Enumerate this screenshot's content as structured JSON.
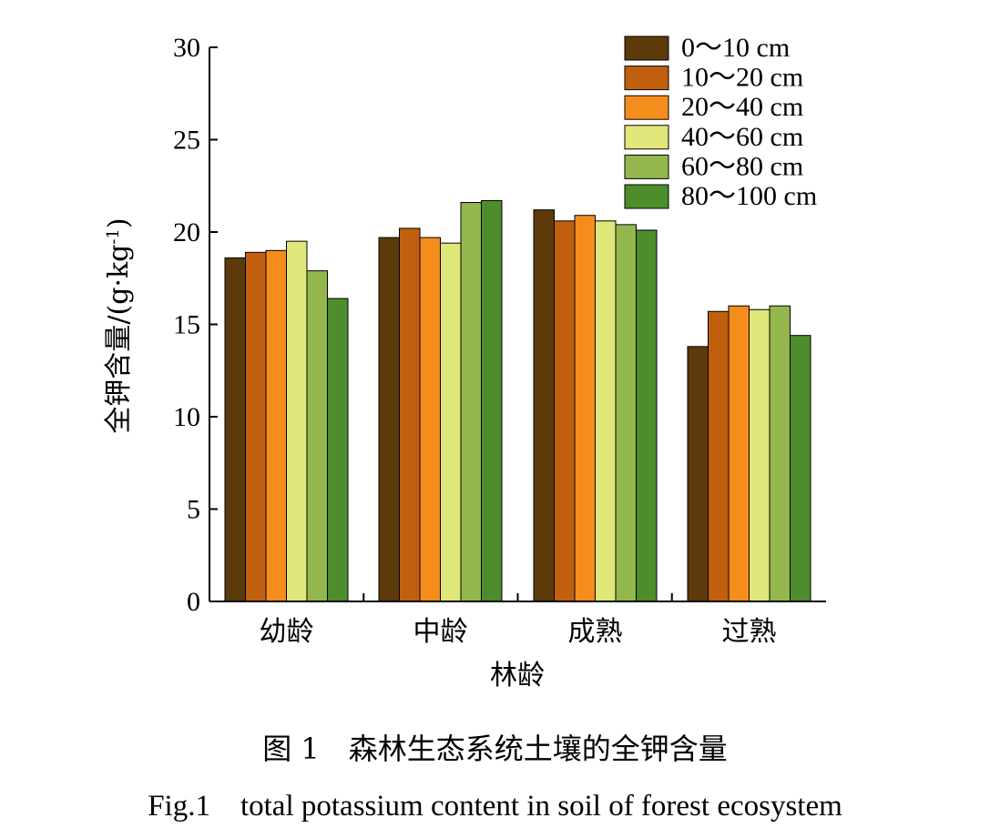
{
  "caption": {
    "cn": "图 1　森林生态系统土壤的全钾含量",
    "en": "Fig.1　total potassium content in soil of forest ecosystem"
  },
  "chart_data": {
    "type": "bar",
    "categories": [
      "幼龄",
      "中龄",
      "成熟",
      "过熟"
    ],
    "xlabel": "林龄",
    "ylabel": "全钾含量/(g·kg-1)",
    "ylabel_parts": {
      "main": "全钾含量/(g·kg",
      "sup": "-1",
      "tail": ")"
    },
    "ylim": [
      0,
      30
    ],
    "yticks": [
      0,
      5,
      10,
      15,
      20,
      25,
      30
    ],
    "grid": false,
    "legend_position": "top-right",
    "series": [
      {
        "name": "0～10 cm",
        "color": "#5c3a0a",
        "values": [
          18.6,
          19.7,
          21.2,
          13.8
        ]
      },
      {
        "name": "10～20 cm",
        "color": "#c0600f",
        "values": [
          18.9,
          20.2,
          20.6,
          15.7
        ]
      },
      {
        "name": "20～40 cm",
        "color": "#f58d1c",
        "values": [
          19.0,
          19.7,
          20.9,
          16.0
        ]
      },
      {
        "name": "40～60 cm",
        "color": "#dfe67a",
        "values": [
          19.5,
          19.4,
          20.6,
          15.8
        ]
      },
      {
        "name": "60～80 cm",
        "color": "#93b74d",
        "values": [
          17.9,
          21.6,
          20.4,
          16.0
        ]
      },
      {
        "name": "80～100 cm",
        "color": "#4d8d2c",
        "values": [
          16.4,
          21.7,
          20.1,
          14.4
        ]
      }
    ]
  }
}
